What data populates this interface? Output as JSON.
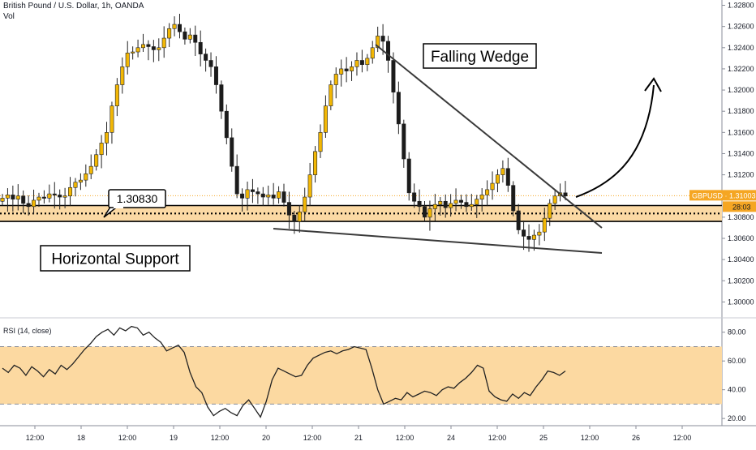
{
  "header": {
    "title": "British Pound / U.S. Dollar, 1h, OANDA",
    "vol_label": "Vol"
  },
  "colors": {
    "up_candle": "#f2b705",
    "down_candle": "#1b1b1b",
    "support_band": "#fbd9a4",
    "rsi_band": "#fcd9a1",
    "price_line": "#f5a623",
    "price_tag": "#f5a623"
  },
  "chart_data": [
    {
      "type": "candlestick",
      "ylim": [
        1.2985,
        1.3285
      ],
      "yticks": [
        "1.30000",
        "1.30200",
        "1.30400",
        "1.30600",
        "1.30800",
        "1.31000",
        "1.31200",
        "1.31400",
        "1.31600",
        "1.31800",
        "1.32000",
        "1.32200",
        "1.32400",
        "1.32600",
        "1.32800"
      ],
      "xticks": [
        "12:00",
        "18",
        "12:00",
        "19",
        "12:00",
        "20",
        "12:00",
        "21",
        "12:00",
        "24",
        "12:00",
        "25",
        "12:00",
        "26",
        "12:00"
      ],
      "close_path": [
        1.3098,
        1.3101,
        1.3097,
        1.31,
        1.3093,
        1.309,
        1.3096,
        1.3099,
        1.3098,
        1.3102,
        1.3101,
        1.3099,
        1.31,
        1.3108,
        1.3113,
        1.3115,
        1.3121,
        1.3128,
        1.3139,
        1.315,
        1.316,
        1.3185,
        1.3205,
        1.3222,
        1.3235,
        1.3236,
        1.324,
        1.3243,
        1.3241,
        1.3238,
        1.324,
        1.3249,
        1.3258,
        1.3262,
        1.3255,
        1.3248,
        1.3252,
        1.3245,
        1.3234,
        1.3228,
        1.3222,
        1.3205,
        1.318,
        1.3155,
        1.3128,
        1.3102,
        1.3098,
        1.3106,
        1.3104,
        1.3102,
        1.3099,
        1.3101,
        1.3098,
        1.3104,
        1.3094,
        1.3082,
        1.3076,
        1.3085,
        1.3099,
        1.312,
        1.3142,
        1.316,
        1.3185,
        1.3205,
        1.3215,
        1.322,
        1.3218,
        1.3222,
        1.3228,
        1.3224,
        1.323,
        1.324,
        1.3251,
        1.3246,
        1.3228,
        1.3198,
        1.3168,
        1.3135,
        1.3103,
        1.3095,
        1.309,
        1.308,
        1.3088,
        1.3092,
        1.3095,
        1.3089,
        1.3093,
        1.3096,
        1.3094,
        1.309,
        1.3092,
        1.3097,
        1.3101,
        1.3106,
        1.3112,
        1.312,
        1.3126,
        1.311,
        1.3086,
        1.3068,
        1.3062,
        1.3059,
        1.3063,
        1.3066,
        1.3079,
        1.3093,
        1.31,
        1.3103,
        1.31
      ],
      "support_label": "1.30830",
      "support_zone": [
        1.3076,
        1.3091
      ],
      "current_price": 1.31003,
      "price_tag": "GBPUSD · 1.31003",
      "countdown": "28:03",
      "annotations": {
        "falling_wedge": "Falling Wedge",
        "horizontal_support": "Horizontal Support"
      }
    },
    {
      "type": "line",
      "title": "RSI (14, close)",
      "ylim": [
        15,
        90
      ],
      "yticks": [
        "20.00",
        "40.00",
        "60.00",
        "80.00"
      ],
      "band": [
        30,
        70
      ],
      "values": [
        55,
        52,
        57,
        55,
        50,
        56,
        53,
        49,
        54,
        51,
        57,
        54,
        58,
        63,
        68,
        72,
        77,
        80,
        82,
        78,
        83,
        81,
        84,
        83,
        78,
        80,
        76,
        73,
        67,
        69,
        71,
        66,
        52,
        42,
        38,
        28,
        22,
        25,
        27,
        24,
        22,
        29,
        33,
        27,
        21,
        32,
        47,
        55,
        53,
        51,
        49,
        50,
        57,
        62,
        64,
        66,
        67,
        65,
        67,
        68,
        70,
        69,
        68,
        55,
        40,
        30,
        32,
        34,
        33,
        38,
        35,
        37,
        39,
        38,
        36,
        40,
        42,
        41,
        45,
        48,
        52,
        57,
        55,
        39,
        35,
        33,
        32,
        37,
        34,
        38,
        36,
        42,
        47,
        53,
        52,
        50,
        53
      ]
    }
  ]
}
